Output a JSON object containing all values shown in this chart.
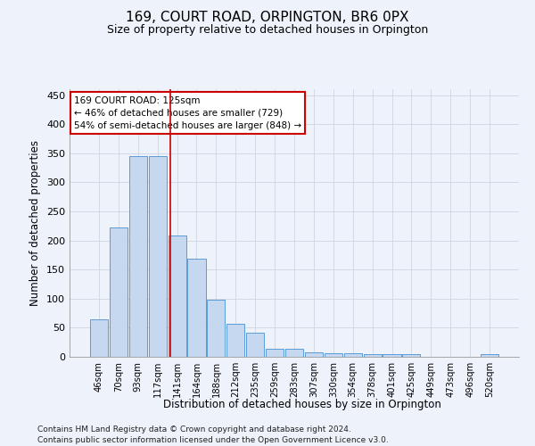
{
  "title": "169, COURT ROAD, ORPINGTON, BR6 0PX",
  "subtitle": "Size of property relative to detached houses in Orpington",
  "xlabel": "Distribution of detached houses by size in Orpington",
  "ylabel": "Number of detached properties",
  "bar_color": "#c5d8f0",
  "bar_edge_color": "#5b9bd5",
  "background_color": "#eef2fa",
  "grid_color": "#c8cfe0",
  "categories": [
    "46sqm",
    "70sqm",
    "93sqm",
    "117sqm",
    "141sqm",
    "164sqm",
    "188sqm",
    "212sqm",
    "235sqm",
    "259sqm",
    "283sqm",
    "307sqm",
    "330sqm",
    "354sqm",
    "378sqm",
    "401sqm",
    "425sqm",
    "449sqm",
    "473sqm",
    "496sqm",
    "520sqm"
  ],
  "values": [
    65,
    222,
    345,
    345,
    208,
    168,
    98,
    57,
    42,
    14,
    14,
    8,
    6,
    6,
    5,
    5,
    5,
    0,
    0,
    0,
    4
  ],
  "vline_x": 3.65,
  "vline_color": "#cc0000",
  "annotation_text": "169 COURT ROAD: 125sqm\n← 46% of detached houses are smaller (729)\n54% of semi-detached houses are larger (848) →",
  "annotation_box_color": "#ffffff",
  "annotation_border_color": "#cc0000",
  "ylim": [
    0,
    460
  ],
  "yticks": [
    0,
    50,
    100,
    150,
    200,
    250,
    300,
    350,
    400,
    450
  ],
  "footer_line1": "Contains HM Land Registry data © Crown copyright and database right 2024.",
  "footer_line2": "Contains public sector information licensed under the Open Government Licence v3.0."
}
